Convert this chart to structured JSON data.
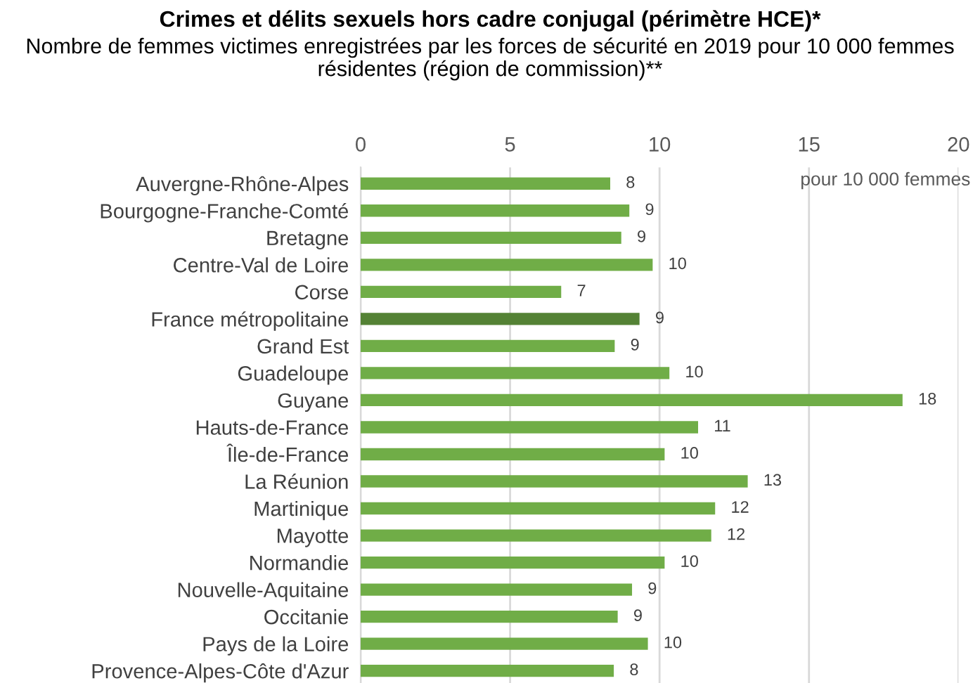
{
  "chart_data": {
    "type": "bar",
    "orientation": "horizontal",
    "title": "Crimes et délits sexuels hors cadre conjugal (périmètre HCE)*",
    "subtitle": "Nombre de femmes victimes enregistrées par les forces de sécurité en 2019 pour 10 000 femmes résidentes (région de commission)**",
    "xlabel": "pour 10 000 femmes",
    "categories": [
      "Auvergne-Rhône-Alpes",
      "Bourgogne-Franche-Comté",
      "Bretagne",
      "Centre-Val de Loire",
      "Corse",
      "France métropolitaine",
      "Grand Est",
      "Guadeloupe",
      "Guyane",
      "Hauts-de-France",
      "Île-de-France",
      "La Réunion",
      "Martinique",
      "Mayotte",
      "Normandie",
      "Nouvelle-Aquitaine",
      "Occitanie",
      "Pays de la Loire",
      "Provence-Alpes-Côte d'Azur"
    ],
    "values": [
      8.35,
      8.99,
      8.72,
      9.77,
      6.71,
      9.33,
      8.5,
      10.33,
      18.13,
      11.29,
      10.17,
      12.95,
      11.86,
      11.73,
      10.17,
      9.08,
      8.6,
      9.61,
      8.47
    ],
    "value_labels": [
      "8",
      "9",
      "9",
      "10",
      "7",
      "9",
      "9",
      "10",
      "18",
      "11",
      "10",
      "13",
      "12",
      "12",
      "10",
      "9",
      "9",
      "10",
      "8"
    ],
    "colors": [
      "#70ad47",
      "#70ad47",
      "#70ad47",
      "#70ad47",
      "#70ad47",
      "#548235",
      "#70ad47",
      "#70ad47",
      "#70ad47",
      "#70ad47",
      "#70ad47",
      "#70ad47",
      "#70ad47",
      "#70ad47",
      "#70ad47",
      "#70ad47",
      "#70ad47",
      "#70ad47",
      "#70ad47"
    ],
    "xlim": [
      0,
      20
    ],
    "xticks": [
      0,
      5,
      10,
      15,
      20
    ],
    "grid": "x"
  }
}
